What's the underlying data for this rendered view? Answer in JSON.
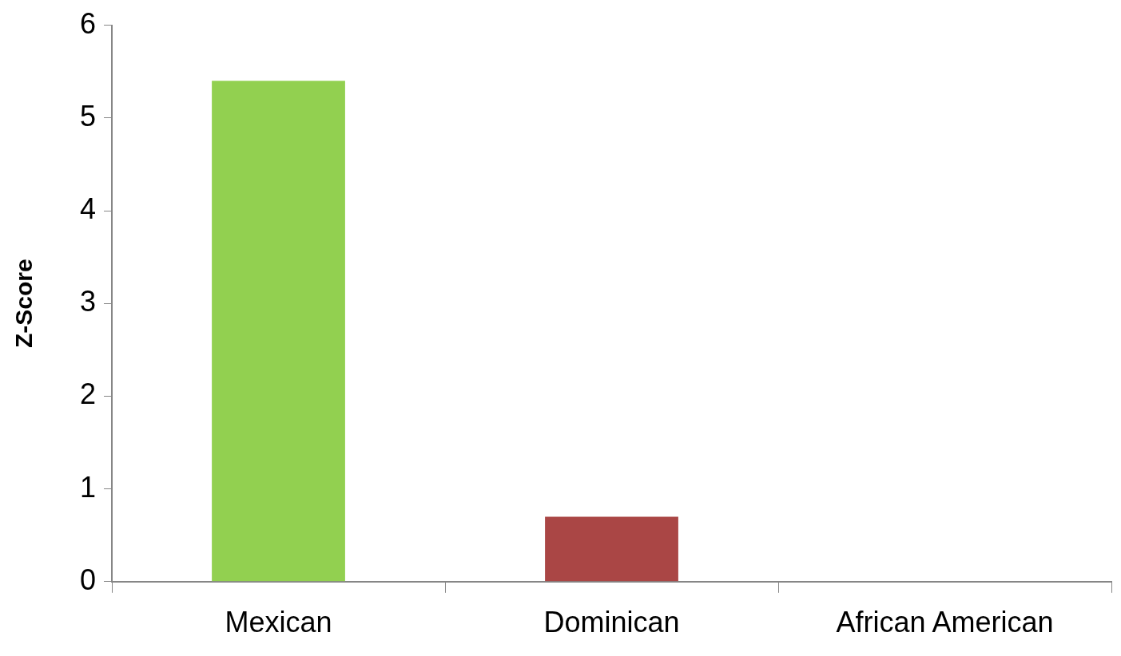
{
  "chart_data": {
    "type": "bar",
    "ylabel": "Z-Score",
    "categories": [
      "Mexican",
      "Dominican",
      "African American"
    ],
    "values": [
      5.4,
      0.7,
      0
    ],
    "colors": [
      "#92d050",
      "#aa4645",
      "#4f81bd"
    ],
    "ylim": [
      0,
      6
    ],
    "yticks": [
      0,
      1,
      2,
      3,
      4,
      5,
      6
    ],
    "grid": false,
    "legend": false
  }
}
